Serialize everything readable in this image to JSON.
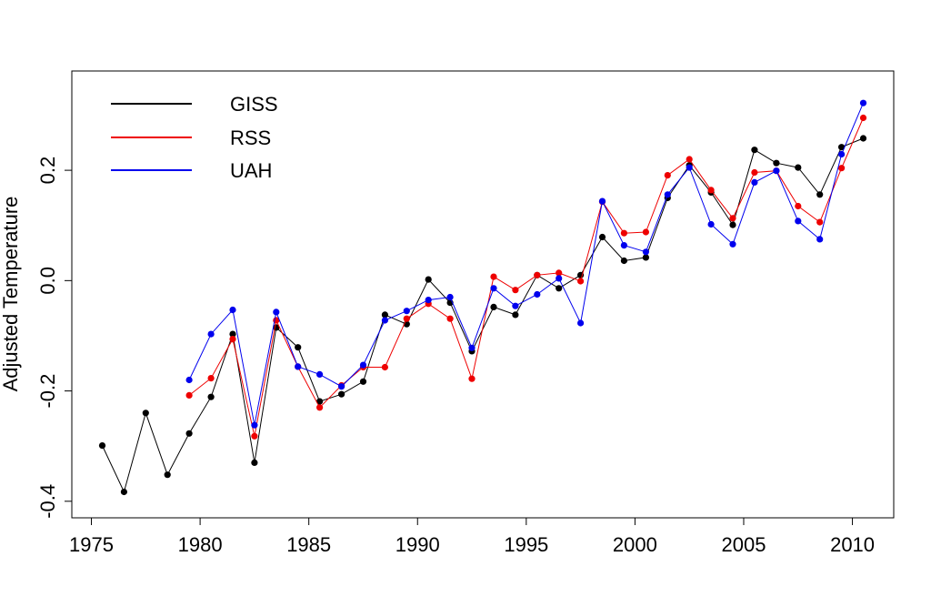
{
  "chart_data": {
    "type": "line",
    "title": "",
    "xlabel": "",
    "ylabel": "Adjusted Temperature",
    "xlim": [
      1974.1,
      2011.9
    ],
    "ylim": [
      -0.43,
      0.38
    ],
    "xticks": [
      1975,
      1980,
      1985,
      1990,
      1995,
      2000,
      2005,
      2010
    ],
    "yticks": [
      -0.4,
      -0.2,
      0.0,
      0.2
    ],
    "ytick_labels": [
      "-0.4",
      "-0.2",
      "0.0",
      "0.2"
    ],
    "grid": false,
    "legend_position": "top-left",
    "series": [
      {
        "name": "GISS",
        "color": "#000000",
        "x": [
          1975.5,
          1976.5,
          1977.5,
          1978.5,
          1979.5,
          1980.5,
          1981.5,
          1982.5,
          1983.5,
          1984.5,
          1985.5,
          1986.5,
          1987.5,
          1988.5,
          1989.5,
          1990.5,
          1991.5,
          1992.5,
          1993.5,
          1994.5,
          1995.5,
          1996.5,
          1997.5,
          1998.5,
          1999.5,
          2000.5,
          2001.5,
          2002.5,
          2003.5,
          2004.5,
          2005.5,
          2006.5,
          2007.5,
          2008.5,
          2009.5,
          2010.5
        ],
        "y": [
          -0.299,
          -0.383,
          -0.24,
          -0.352,
          -0.277,
          -0.211,
          -0.097,
          -0.33,
          -0.085,
          -0.121,
          -0.219,
          -0.206,
          -0.183,
          -0.062,
          -0.079,
          0.002,
          -0.04,
          -0.128,
          -0.048,
          -0.062,
          0.01,
          -0.014,
          0.01,
          0.079,
          0.036,
          0.042,
          0.15,
          0.209,
          0.16,
          0.101,
          0.237,
          0.213,
          0.205,
          0.156,
          0.242,
          0.258
        ]
      },
      {
        "name": "RSS",
        "color": "#ee0000",
        "x": [
          1979.5,
          1980.5,
          1981.5,
          1982.5,
          1983.5,
          1984.5,
          1985.5,
          1986.5,
          1987.5,
          1988.5,
          1989.5,
          1990.5,
          1991.5,
          1992.5,
          1993.5,
          1994.5,
          1995.5,
          1996.5,
          1997.5,
          1998.5,
          1999.5,
          2000.5,
          2001.5,
          2002.5,
          2003.5,
          2004.5,
          2005.5,
          2006.5,
          2007.5,
          2008.5,
          2009.5,
          2010.5
        ],
        "y": [
          -0.208,
          -0.177,
          -0.106,
          -0.282,
          -0.072,
          -0.156,
          -0.23,
          -0.19,
          -0.157,
          -0.157,
          -0.069,
          -0.042,
          -0.069,
          -0.178,
          0.007,
          -0.017,
          0.01,
          0.014,
          -0.001,
          0.143,
          0.086,
          0.088,
          0.191,
          0.22,
          0.164,
          0.113,
          0.196,
          0.199,
          0.135,
          0.106,
          0.204,
          0.295
        ]
      },
      {
        "name": "UAH",
        "color": "#0000ee",
        "x": [
          1979.5,
          1980.5,
          1981.5,
          1982.5,
          1983.5,
          1984.5,
          1985.5,
          1986.5,
          1987.5,
          1988.5,
          1989.5,
          1990.5,
          1991.5,
          1992.5,
          1993.5,
          1994.5,
          1995.5,
          1996.5,
          1997.5,
          1998.5,
          1999.5,
          2000.5,
          2001.5,
          2002.5,
          2003.5,
          2004.5,
          2005.5,
          2006.5,
          2007.5,
          2008.5,
          2009.5,
          2010.5
        ],
        "y": [
          -0.18,
          -0.097,
          -0.053,
          -0.262,
          -0.057,
          -0.156,
          -0.17,
          -0.192,
          -0.153,
          -0.072,
          -0.055,
          -0.035,
          -0.03,
          -0.122,
          -0.014,
          -0.046,
          -0.025,
          0.004,
          -0.077,
          0.144,
          0.064,
          0.052,
          0.156,
          0.205,
          0.102,
          0.066,
          0.178,
          0.199,
          0.108,
          0.075,
          0.229,
          0.322
        ]
      }
    ]
  }
}
